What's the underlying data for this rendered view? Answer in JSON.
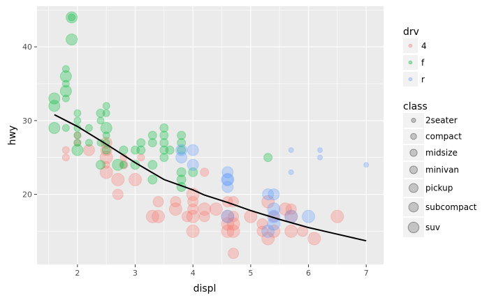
{
  "chart_data": {
    "type": "scatter",
    "xlabel": "displ",
    "ylabel": "hwy",
    "xlim": [
      1.3,
      7.3
    ],
    "ylim": [
      10.5,
      45.5
    ],
    "x_ticks": [
      2,
      3,
      4,
      5,
      6,
      7
    ],
    "y_ticks": [
      20,
      30,
      40
    ],
    "grid": true,
    "legend_placement": "right",
    "colors": {
      "panel": "#ebebeb",
      "grid": "#ffffff",
      "drv_4": "#f8766d",
      "drv_f": "#00ba38",
      "drv_r": "#619cff",
      "smooth": "#000000"
    },
    "legends": [
      {
        "title": "drv",
        "entries": [
          {
            "label": "4",
            "color": "#f8766d"
          },
          {
            "label": "f",
            "color": "#00ba38"
          },
          {
            "label": "r",
            "color": "#619cff"
          }
        ]
      },
      {
        "title": "class",
        "entries": [
          {
            "label": "2seater",
            "size": 1
          },
          {
            "label": "compact",
            "size": 2
          },
          {
            "label": "midsize",
            "size": 3
          },
          {
            "label": "minivan",
            "size": 4
          },
          {
            "label": "pickup",
            "size": 5
          },
          {
            "label": "subcompact",
            "size": 6
          },
          {
            "label": "suv",
            "size": 7
          }
        ]
      }
    ],
    "class_sizes": {
      "2seater": 3.5,
      "compact": 5,
      "midsize": 6,
      "minivan": 6.5,
      "pickup": 7.5,
      "subcompact": 8,
      "suv": 9
    },
    "series": [
      {
        "drv": "4",
        "points": [
          {
            "x": 1.8,
            "y": 26,
            "class": "compact"
          },
          {
            "x": 1.8,
            "y": 25,
            "class": "compact"
          },
          {
            "x": 2.0,
            "y": 28,
            "class": "compact"
          },
          {
            "x": 2.0,
            "y": 27,
            "class": "compact"
          },
          {
            "x": 2.2,
            "y": 26,
            "class": "subcompact"
          },
          {
            "x": 2.5,
            "y": 26,
            "class": "subcompact"
          },
          {
            "x": 2.5,
            "y": 25,
            "class": "suv"
          },
          {
            "x": 2.5,
            "y": 23,
            "class": "suv"
          },
          {
            "x": 2.5,
            "y": 27,
            "class": "subcompact"
          },
          {
            "x": 2.5,
            "y": 24,
            "class": "compact"
          },
          {
            "x": 2.7,
            "y": 20,
            "class": "pickup"
          },
          {
            "x": 2.7,
            "y": 22,
            "class": "suv"
          },
          {
            "x": 2.8,
            "y": 25,
            "class": "compact"
          },
          {
            "x": 2.8,
            "y": 24,
            "class": "midsize"
          },
          {
            "x": 3.0,
            "y": 22,
            "class": "suv"
          },
          {
            "x": 3.1,
            "y": 25,
            "class": "compact"
          },
          {
            "x": 3.3,
            "y": 17,
            "class": "suv"
          },
          {
            "x": 3.4,
            "y": 19,
            "class": "pickup"
          },
          {
            "x": 3.4,
            "y": 17,
            "class": "suv"
          },
          {
            "x": 3.7,
            "y": 18,
            "class": "suv"
          },
          {
            "x": 3.7,
            "y": 19,
            "class": "pickup"
          },
          {
            "x": 3.9,
            "y": 17,
            "class": "pickup"
          },
          {
            "x": 4.0,
            "y": 20,
            "class": "suv"
          },
          {
            "x": 4.0,
            "y": 19,
            "class": "pickup"
          },
          {
            "x": 4.0,
            "y": 17,
            "class": "suv"
          },
          {
            "x": 4.0,
            "y": 15,
            "class": "suv"
          },
          {
            "x": 4.0,
            "y": 18,
            "class": "pickup"
          },
          {
            "x": 4.2,
            "y": 23,
            "class": "midsize"
          },
          {
            "x": 4.2,
            "y": 17,
            "class": "pickup"
          },
          {
            "x": 4.2,
            "y": 18,
            "class": "suv"
          },
          {
            "x": 4.4,
            "y": 18,
            "class": "suv"
          },
          {
            "x": 4.6,
            "y": 19,
            "class": "pickup"
          },
          {
            "x": 4.6,
            "y": 17,
            "class": "suv"
          },
          {
            "x": 4.6,
            "y": 16,
            "class": "suv"
          },
          {
            "x": 4.6,
            "y": 15,
            "class": "suv"
          },
          {
            "x": 4.7,
            "y": 19,
            "class": "pickup"
          },
          {
            "x": 4.7,
            "y": 17,
            "class": "pickup"
          },
          {
            "x": 4.7,
            "y": 15,
            "class": "suv"
          },
          {
            "x": 4.7,
            "y": 16,
            "class": "suv"
          },
          {
            "x": 4.7,
            "y": 12,
            "class": "pickup"
          },
          {
            "x": 5.0,
            "y": 17,
            "class": "suv"
          },
          {
            "x": 5.2,
            "y": 16,
            "class": "pickup"
          },
          {
            "x": 5.2,
            "y": 15,
            "class": "pickup"
          },
          {
            "x": 5.3,
            "y": 19,
            "class": "suv"
          },
          {
            "x": 5.3,
            "y": 14,
            "class": "suv"
          },
          {
            "x": 5.4,
            "y": 15,
            "class": "suv"
          },
          {
            "x": 5.4,
            "y": 17,
            "class": "pickup"
          },
          {
            "x": 5.6,
            "y": 18,
            "class": "suv"
          },
          {
            "x": 5.7,
            "y": 18,
            "class": "pickup"
          },
          {
            "x": 5.7,
            "y": 17,
            "class": "suv"
          },
          {
            "x": 5.7,
            "y": 15,
            "class": "suv"
          },
          {
            "x": 5.9,
            "y": 15,
            "class": "pickup"
          },
          {
            "x": 6.1,
            "y": 14,
            "class": "suv"
          },
          {
            "x": 6.5,
            "y": 17,
            "class": "suv"
          }
        ]
      },
      {
        "drv": "f",
        "points": [
          {
            "x": 1.6,
            "y": 33,
            "class": "subcompact"
          },
          {
            "x": 1.6,
            "y": 32,
            "class": "subcompact"
          },
          {
            "x": 1.6,
            "y": 29,
            "class": "subcompact"
          },
          {
            "x": 1.8,
            "y": 36,
            "class": "subcompact"
          },
          {
            "x": 1.8,
            "y": 34,
            "class": "subcompact"
          },
          {
            "x": 1.8,
            "y": 37,
            "class": "compact"
          },
          {
            "x": 1.8,
            "y": 35,
            "class": "compact"
          },
          {
            "x": 1.8,
            "y": 29,
            "class": "compact"
          },
          {
            "x": 1.8,
            "y": 33,
            "class": "compact"
          },
          {
            "x": 1.9,
            "y": 44,
            "class": "compact"
          },
          {
            "x": 1.9,
            "y": 44,
            "class": "subcompact"
          },
          {
            "x": 1.9,
            "y": 41,
            "class": "subcompact"
          },
          {
            "x": 2.0,
            "y": 29,
            "class": "compact"
          },
          {
            "x": 2.0,
            "y": 26,
            "class": "subcompact"
          },
          {
            "x": 2.0,
            "y": 28,
            "class": "compact"
          },
          {
            "x": 2.0,
            "y": 31,
            "class": "compact"
          },
          {
            "x": 2.0,
            "y": 30,
            "class": "compact"
          },
          {
            "x": 2.0,
            "y": 27,
            "class": "compact"
          },
          {
            "x": 2.2,
            "y": 29,
            "class": "compact"
          },
          {
            "x": 2.2,
            "y": 27,
            "class": "compact"
          },
          {
            "x": 2.4,
            "y": 31,
            "class": "midsize"
          },
          {
            "x": 2.4,
            "y": 30,
            "class": "compact"
          },
          {
            "x": 2.4,
            "y": 27,
            "class": "compact"
          },
          {
            "x": 2.4,
            "y": 24,
            "class": "minivan"
          },
          {
            "x": 2.5,
            "y": 32,
            "class": "compact"
          },
          {
            "x": 2.5,
            "y": 29,
            "class": "subcompact"
          },
          {
            "x": 2.5,
            "y": 28,
            "class": "compact"
          },
          {
            "x": 2.5,
            "y": 31,
            "class": "compact"
          },
          {
            "x": 2.5,
            "y": 26,
            "class": "midsize"
          },
          {
            "x": 2.5,
            "y": 27,
            "class": "compact"
          },
          {
            "x": 2.7,
            "y": 24,
            "class": "subcompact"
          },
          {
            "x": 2.8,
            "y": 26,
            "class": "midsize"
          },
          {
            "x": 2.8,
            "y": 24,
            "class": "compact"
          },
          {
            "x": 3.0,
            "y": 26,
            "class": "midsize"
          },
          {
            "x": 3.0,
            "y": 24,
            "class": "minivan"
          },
          {
            "x": 3.1,
            "y": 27,
            "class": "midsize"
          },
          {
            "x": 3.1,
            "y": 26,
            "class": "midsize"
          },
          {
            "x": 3.3,
            "y": 28,
            "class": "midsize"
          },
          {
            "x": 3.3,
            "y": 27,
            "class": "midsize"
          },
          {
            "x": 3.3,
            "y": 22,
            "class": "minivan"
          },
          {
            "x": 3.3,
            "y": 24,
            "class": "minivan"
          },
          {
            "x": 3.5,
            "y": 29,
            "class": "midsize"
          },
          {
            "x": 3.5,
            "y": 28,
            "class": "midsize"
          },
          {
            "x": 3.5,
            "y": 26,
            "class": "midsize"
          },
          {
            "x": 3.5,
            "y": 27,
            "class": "midsize"
          },
          {
            "x": 3.5,
            "y": 25,
            "class": "midsize"
          },
          {
            "x": 3.6,
            "y": 26,
            "class": "midsize"
          },
          {
            "x": 3.8,
            "y": 28,
            "class": "midsize"
          },
          {
            "x": 3.8,
            "y": 26,
            "class": "midsize"
          },
          {
            "x": 3.8,
            "y": 23,
            "class": "minivan"
          },
          {
            "x": 3.8,
            "y": 22,
            "class": "minivan"
          },
          {
            "x": 3.8,
            "y": 21,
            "class": "minivan"
          },
          {
            "x": 3.8,
            "y": 27,
            "class": "midsize"
          },
          {
            "x": 4.0,
            "y": 23,
            "class": "minivan"
          },
          {
            "x": 5.3,
            "y": 25,
            "class": "midsize"
          }
        ]
      },
      {
        "drv": "r",
        "points": [
          {
            "x": 3.8,
            "y": 26,
            "class": "subcompact"
          },
          {
            "x": 3.8,
            "y": 25,
            "class": "subcompact"
          },
          {
            "x": 4.0,
            "y": 26,
            "class": "subcompact"
          },
          {
            "x": 4.0,
            "y": 24,
            "class": "subcompact"
          },
          {
            "x": 4.6,
            "y": 21,
            "class": "subcompact"
          },
          {
            "x": 4.6,
            "y": 23,
            "class": "subcompact"
          },
          {
            "x": 4.6,
            "y": 22,
            "class": "subcompact"
          },
          {
            "x": 4.6,
            "y": 22,
            "class": "suv"
          },
          {
            "x": 4.6,
            "y": 17,
            "class": "suv"
          },
          {
            "x": 5.3,
            "y": 20,
            "class": "subcompact"
          },
          {
            "x": 5.3,
            "y": 15,
            "class": "suv"
          },
          {
            "x": 5.4,
            "y": 17,
            "class": "suv"
          },
          {
            "x": 5.4,
            "y": 16,
            "class": "suv"
          },
          {
            "x": 5.4,
            "y": 18,
            "class": "suv"
          },
          {
            "x": 5.4,
            "y": 20,
            "class": "subcompact"
          },
          {
            "x": 5.7,
            "y": 26,
            "class": "2seater"
          },
          {
            "x": 5.7,
            "y": 23,
            "class": "2seater"
          },
          {
            "x": 5.7,
            "y": 17,
            "class": "suv"
          },
          {
            "x": 6.0,
            "y": 17,
            "class": "suv"
          },
          {
            "x": 6.2,
            "y": 26,
            "class": "2seater"
          },
          {
            "x": 6.2,
            "y": 25,
            "class": "2seater"
          },
          {
            "x": 7.0,
            "y": 24,
            "class": "2seater"
          }
        ]
      }
    ],
    "smooth_line": {
      "x": [
        1.6,
        2.0,
        2.5,
        3.0,
        3.5,
        4.0,
        4.2,
        4.6,
        5.0,
        5.5,
        6.0,
        6.5,
        7.0
      ],
      "y": [
        30.8,
        29.2,
        26.8,
        24.3,
        22.0,
        20.6,
        19.9,
        18.9,
        17.8,
        16.6,
        15.5,
        14.6,
        13.7
      ]
    }
  }
}
